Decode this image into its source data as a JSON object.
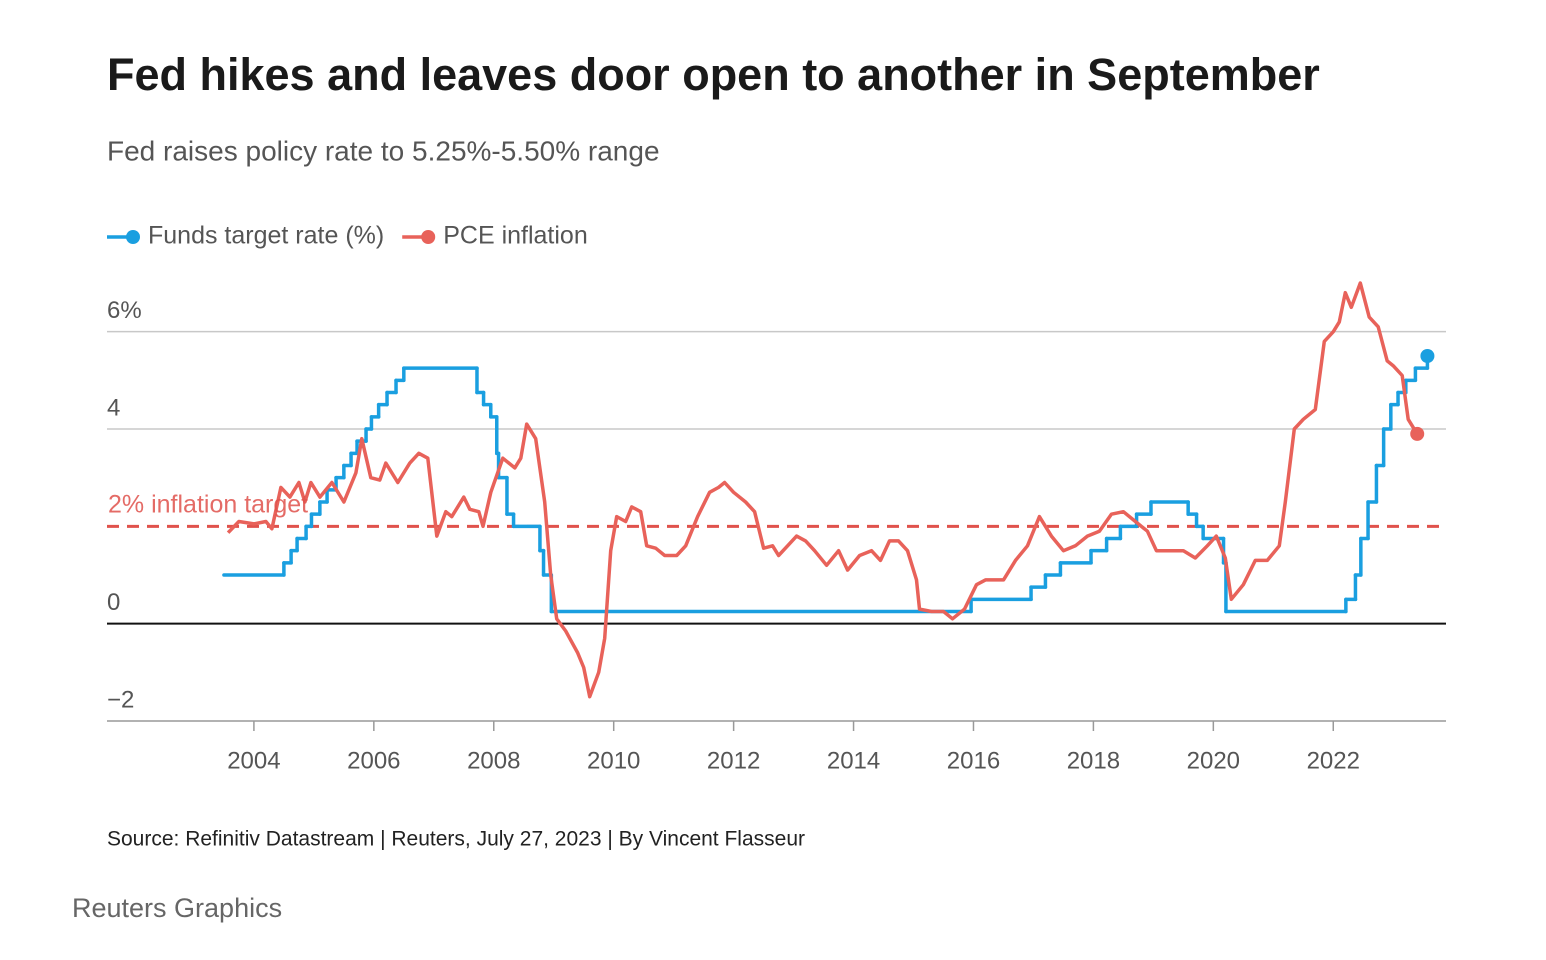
{
  "chart_data": {
    "type": "line",
    "title": "Fed hikes and leaves door open to another in September",
    "subtitle": "Fed raises policy rate to 5.25%-5.50% range",
    "source": "Source: Refinitiv Datastream | Reuters, July 27, 2023 | By Vincent Flasseur",
    "credit": "Reuters Graphics",
    "xlim": [
      2001.55,
      2023.88
    ],
    "xticks": [
      2004,
      2006,
      2008,
      2010,
      2012,
      2014,
      2016,
      2018,
      2020,
      2022
    ],
    "ylim": [
      -2,
      7
    ],
    "yticks": [
      {
        "value": -2,
        "label": "−2"
      },
      0,
      4,
      {
        "value": 6,
        "label": "6%"
      }
    ],
    "grid": true,
    "legend": "top-left",
    "target": {
      "value": 2,
      "label": "2% inflation target",
      "color": "#e0524c"
    },
    "series": [
      {
        "name": "Funds target rate (%)",
        "color": "#1a9fe0",
        "step": true,
        "x": [
          2003.5,
          2004.5,
          2004.62,
          2004.72,
          2004.87,
          2004.96,
          2005.1,
          2005.22,
          2005.37,
          2005.5,
          2005.62,
          2005.72,
          2005.87,
          2005.96,
          2006.08,
          2006.22,
          2006.37,
          2006.5,
          2007.72,
          2007.83,
          2007.95,
          2008.05,
          2008.08,
          2008.22,
          2008.33,
          2008.77,
          2008.83,
          2008.96,
          2015.96,
          2016.96,
          2017.2,
          2017.45,
          2017.96,
          2018.22,
          2018.45,
          2018.72,
          2018.96,
          2019.58,
          2019.72,
          2019.83,
          2020.17,
          2020.21,
          2022.21,
          2022.37,
          2022.46,
          2022.58,
          2022.72,
          2022.84,
          2022.96,
          2023.08,
          2023.21,
          2023.37,
          2023.57
        ],
        "values": [
          1.0,
          1.25,
          1.5,
          1.75,
          2.0,
          2.25,
          2.5,
          2.75,
          3.0,
          3.25,
          3.5,
          3.75,
          4.0,
          4.25,
          4.5,
          4.75,
          5.0,
          5.25,
          4.75,
          4.5,
          4.25,
          3.5,
          3.0,
          2.25,
          2.0,
          1.5,
          1.0,
          0.25,
          0.5,
          0.75,
          1.0,
          1.25,
          1.5,
          1.75,
          2.0,
          2.25,
          2.5,
          2.25,
          2.0,
          1.75,
          1.25,
          0.25,
          0.5,
          1.0,
          1.75,
          2.5,
          3.25,
          4.0,
          4.5,
          4.75,
          5.0,
          5.25,
          5.5
        ]
      },
      {
        "name": "PCE inflation",
        "color": "#e8625a",
        "x": [
          2003.57,
          2003.75,
          2004.0,
          2004.2,
          2004.3,
          2004.45,
          2004.6,
          2004.75,
          2004.85,
          2004.95,
          2005.1,
          2005.3,
          2005.5,
          2005.7,
          2005.8,
          2005.95,
          2006.1,
          2006.2,
          2006.4,
          2006.6,
          2006.75,
          2006.9,
          2007.05,
          2007.2,
          2007.3,
          2007.5,
          2007.6,
          2007.75,
          2007.82,
          2007.95,
          2008.15,
          2008.35,
          2008.45,
          2008.55,
          2008.7,
          2008.85,
          2008.95,
          2009.05,
          2009.2,
          2009.4,
          2009.5,
          2009.6,
          2009.75,
          2009.85,
          2009.95,
          2010.05,
          2010.2,
          2010.3,
          2010.45,
          2010.55,
          2010.7,
          2010.85,
          2011.05,
          2011.2,
          2011.4,
          2011.6,
          2011.75,
          2011.85,
          2012.0,
          2012.2,
          2012.35,
          2012.5,
          2012.65,
          2012.75,
          2012.9,
          2013.05,
          2013.2,
          2013.35,
          2013.55,
          2013.75,
          2013.9,
          2014.1,
          2014.3,
          2014.45,
          2014.6,
          2014.75,
          2014.9,
          2015.05,
          2015.1,
          2015.3,
          2015.5,
          2015.65,
          2015.85,
          2016.05,
          2016.2,
          2016.5,
          2016.7,
          2016.9,
          2017.1,
          2017.3,
          2017.5,
          2017.7,
          2017.9,
          2018.1,
          2018.3,
          2018.5,
          2018.7,
          2018.9,
          2019.05,
          2019.3,
          2019.5,
          2019.7,
          2019.9,
          2020.05,
          2020.2,
          2020.3,
          2020.5,
          2020.7,
          2020.9,
          2021.1,
          2021.2,
          2021.35,
          2021.5,
          2021.7,
          2021.85,
          2022.0,
          2022.1,
          2022.2,
          2022.3,
          2022.45,
          2022.6,
          2022.75,
          2022.9,
          2023.0,
          2023.15,
          2023.25,
          2023.4
        ],
        "values": [
          1.87,
          2.1,
          2.05,
          2.1,
          1.95,
          2.8,
          2.6,
          2.9,
          2.5,
          2.9,
          2.6,
          2.9,
          2.5,
          3.1,
          3.8,
          3.0,
          2.95,
          3.3,
          2.9,
          3.3,
          3.5,
          3.4,
          1.8,
          2.3,
          2.2,
          2.6,
          2.35,
          2.3,
          2.0,
          2.7,
          3.4,
          3.2,
          3.4,
          4.1,
          3.8,
          2.5,
          1.0,
          0.1,
          -0.15,
          -0.6,
          -0.9,
          -1.5,
          -1.0,
          -0.3,
          1.5,
          2.2,
          2.1,
          2.4,
          2.3,
          1.6,
          1.55,
          1.4,
          1.4,
          1.6,
          2.2,
          2.7,
          2.8,
          2.9,
          2.7,
          2.5,
          2.3,
          1.55,
          1.6,
          1.4,
          1.6,
          1.8,
          1.7,
          1.5,
          1.2,
          1.5,
          1.1,
          1.4,
          1.5,
          1.3,
          1.7,
          1.7,
          1.5,
          0.9,
          0.3,
          0.25,
          0.25,
          0.1,
          0.3,
          0.8,
          0.9,
          0.9,
          1.3,
          1.6,
          2.2,
          1.8,
          1.5,
          1.6,
          1.8,
          1.9,
          2.25,
          2.3,
          2.1,
          1.9,
          1.5,
          1.5,
          1.5,
          1.35,
          1.6,
          1.8,
          1.35,
          0.5,
          0.8,
          1.3,
          1.3,
          1.6,
          2.5,
          4.0,
          4.2,
          4.4,
          5.8,
          6.0,
          6.2,
          6.8,
          6.5,
          7.0,
          6.3,
          6.1,
          5.4,
          5.3,
          5.1,
          4.2,
          3.9
        ]
      }
    ]
  }
}
